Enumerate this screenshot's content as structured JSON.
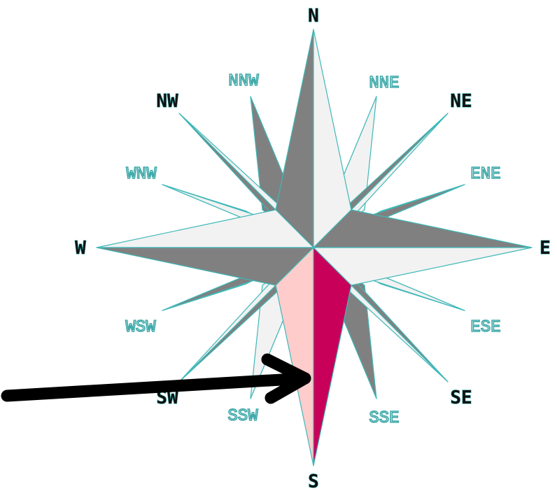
{
  "compass": {
    "cardinal": {
      "n": "N",
      "e": "E",
      "s": "S",
      "w": "W"
    },
    "intercardinal": {
      "ne": "NE",
      "se": "SE",
      "sw": "SW",
      "nw": "NW"
    },
    "secondary": {
      "nne": "NNE",
      "ene": "ENE",
      "ese": "ESE",
      "sse": "SSE",
      "ssw": "SSW",
      "wsw": "WSW",
      "wnw": "WNW",
      "nnw": "NNW"
    },
    "highlighted_point": "S",
    "colors": {
      "dark": "#808080",
      "light": "#f2f2f2",
      "outline": "#3fb8b8",
      "highlight_dark": "#c8005a",
      "highlight_light": "#ffcccc",
      "arrow": "#000000"
    }
  }
}
